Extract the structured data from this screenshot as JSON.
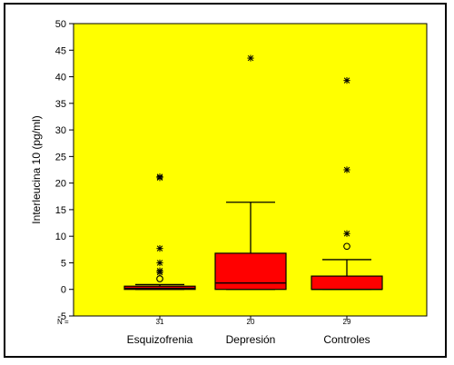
{
  "chart_data": {
    "type": "box",
    "title": "",
    "xlabel": "",
    "ylabel": "Interleucina 10 (pg/ml)",
    "ylim": [
      -5,
      50
    ],
    "y_ticks": [
      -5,
      0,
      5,
      10,
      15,
      20,
      25,
      30,
      35,
      40,
      45,
      50
    ],
    "n_prefix": "N =",
    "background_color": "#ffff00",
    "box_color": "#ff0000",
    "grid": false,
    "categories": [
      "Esquizofrenia",
      "Depresión",
      "Controles"
    ],
    "n": [
      "31",
      "20",
      "29"
    ],
    "boxes": [
      {
        "q1": 0,
        "median": 0.2,
        "q3": 0.6,
        "whisker_low": 0,
        "whisker_high": 0.9,
        "outliers": [
          2.0
        ],
        "extremes": [
          3.2,
          3.5,
          5.0,
          7.7,
          21.0,
          21.2
        ]
      },
      {
        "q1": 0,
        "median": 1.2,
        "q3": 6.8,
        "whisker_low": 0,
        "whisker_high": 16.4,
        "outliers": [],
        "extremes": [
          43.5
        ]
      },
      {
        "q1": 0,
        "median": 0,
        "q3": 2.5,
        "whisker_low": 0,
        "whisker_high": 5.6,
        "outliers": [
          8.1
        ],
        "extremes": [
          10.5,
          22.5,
          39.3
        ]
      }
    ]
  }
}
